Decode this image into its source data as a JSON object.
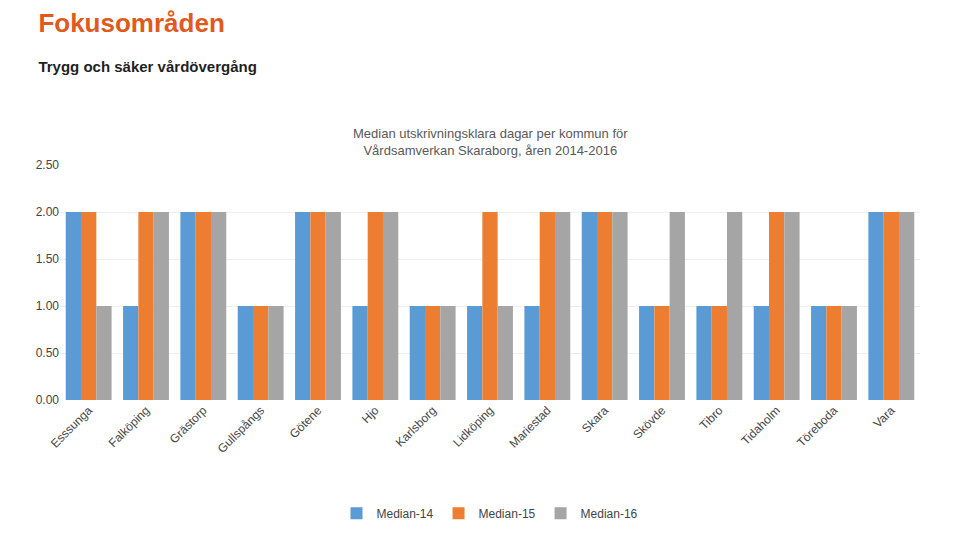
{
  "chart_data": {
    "type": "bar",
    "title": "Fokusområden",
    "subtitle": "Trygg och säker vårdövergång",
    "annotations": [
      "Median utskrivningsklara dagar per kommun för",
      "Vårdsamverkan Skaraborg, åren 2014-2016"
    ],
    "categories": [
      "Esssunga",
      "Falköping",
      "Grästorp",
      "Gullspångs",
      "Götene",
      "Hjo",
      "Karlsborg",
      "Lidköping",
      "Mariestad",
      "Skara",
      "Skövde",
      "Tibro",
      "Tidaholm",
      "Töreboda",
      "Vara"
    ],
    "series": [
      {
        "name": "Median-14",
        "color": "#5B9BD5",
        "values": [
          2,
          1,
          2,
          1,
          2,
          1,
          1,
          1,
          1,
          2,
          1,
          1,
          1,
          1,
          2
        ]
      },
      {
        "name": "Median-15",
        "color": "#ED7D31",
        "values": [
          2,
          2,
          2,
          1,
          2,
          2,
          1,
          2,
          2,
          2,
          1,
          1,
          2,
          1,
          2
        ]
      },
      {
        "name": "Median-16",
        "color": "#A5A5A5",
        "values": [
          1,
          2,
          2,
          1,
          2,
          2,
          1,
          1,
          2,
          2,
          2,
          2,
          2,
          1,
          2
        ]
      }
    ],
    "ylim": [
      0,
      2.5
    ],
    "yticks": [
      {
        "value": 0,
        "label": "0.00"
      },
      {
        "value": 0.5,
        "label": "0.50"
      },
      {
        "value": 1,
        "label": "1.00"
      },
      {
        "value": 1.5,
        "label": "1.50"
      },
      {
        "value": 2,
        "label": "2.00"
      },
      {
        "value": 2.5,
        "label": "2.50"
      }
    ],
    "grid": true,
    "legend": "bottom"
  }
}
